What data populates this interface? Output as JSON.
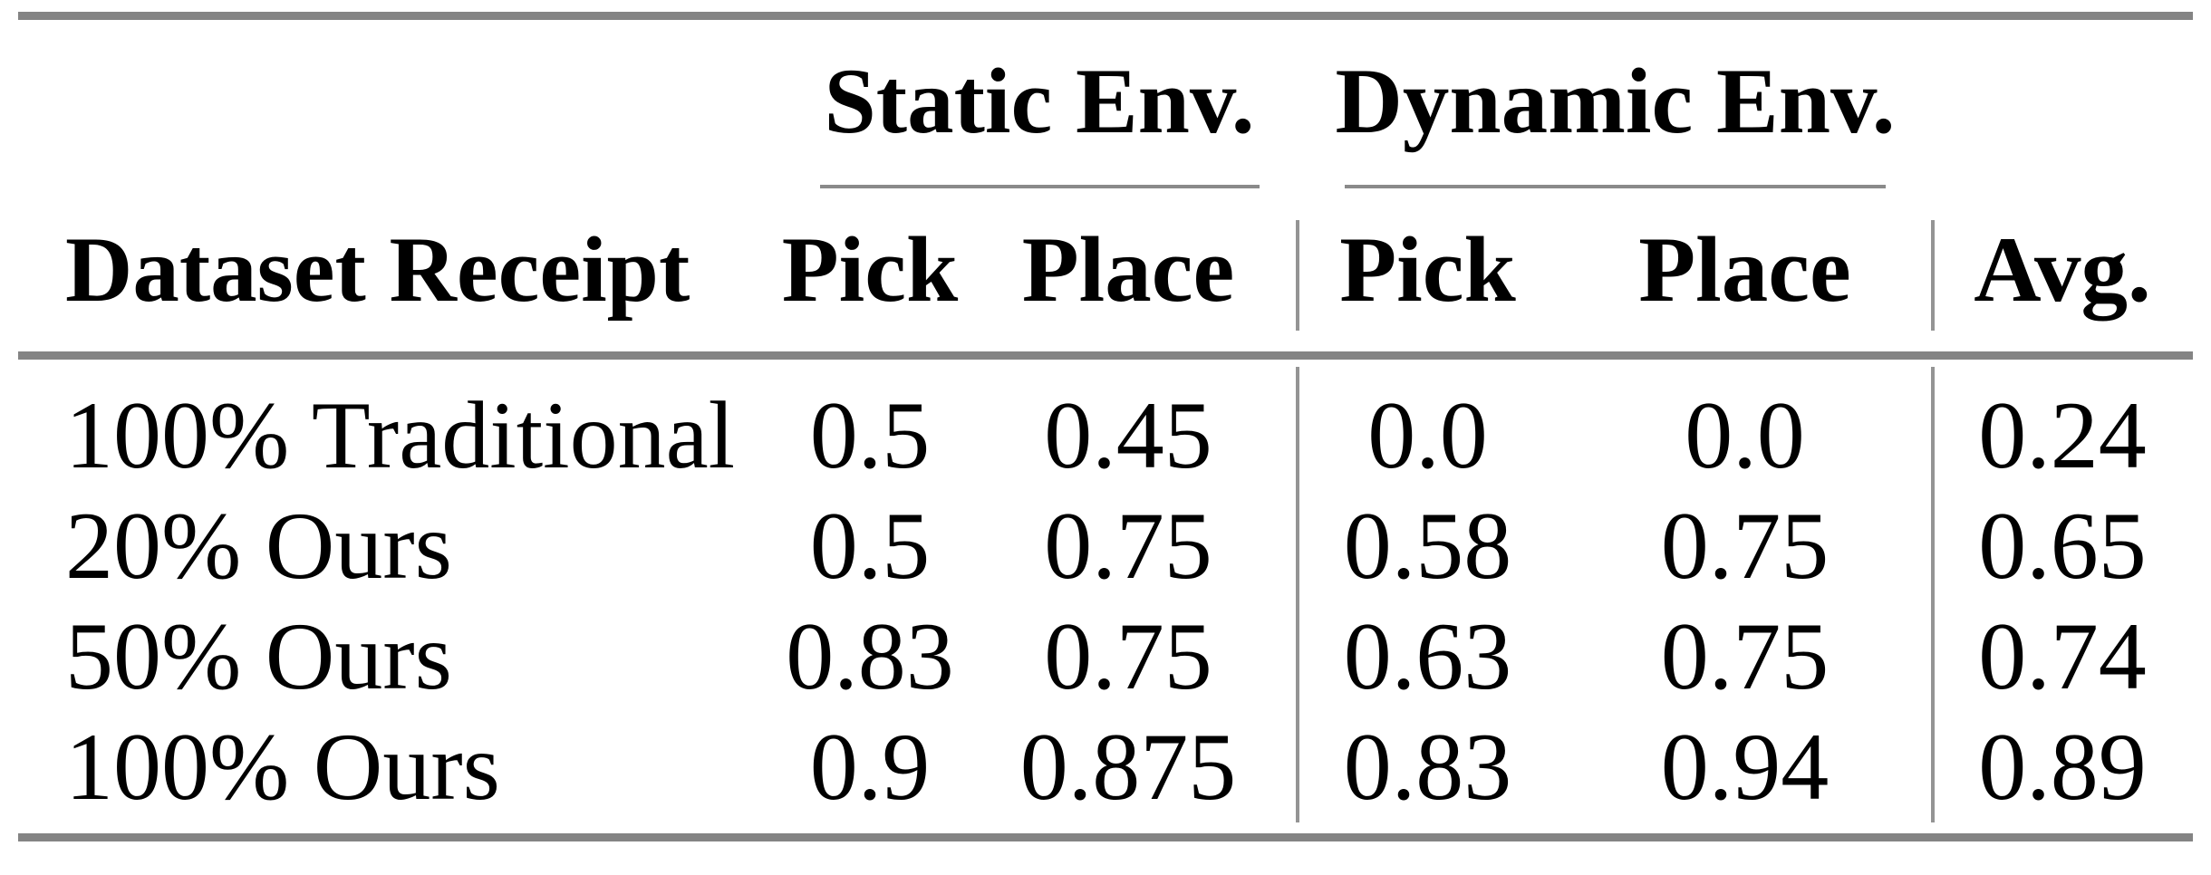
{
  "table": {
    "row_header": "Dataset Receipt",
    "groups": {
      "static": {
        "label": "Static Env.",
        "pick": "Pick",
        "place": "Place"
      },
      "dynamic": {
        "label": "Dynamic Env.",
        "pick": "Pick",
        "place": "Place"
      }
    },
    "avg_header": "Avg.",
    "rows": [
      {
        "label": "100% Traditional",
        "static_pick": "0.5",
        "static_place": "0.45",
        "dynamic_pick": "0.0",
        "dynamic_place": "0.0",
        "avg": "0.24"
      },
      {
        "label": "20% Ours",
        "static_pick": "0.5",
        "static_place": "0.75",
        "dynamic_pick": "0.58",
        "dynamic_place": "0.75",
        "avg": "0.65"
      },
      {
        "label": "50% Ours",
        "static_pick": "0.83",
        "static_place": "0.75",
        "dynamic_pick": "0.63",
        "dynamic_place": "0.75",
        "avg": "0.74"
      },
      {
        "label": "100% Ours",
        "static_pick": "0.9",
        "static_place": "0.875",
        "dynamic_pick": "0.83",
        "dynamic_place": "0.94",
        "avg": "0.89"
      }
    ],
    "colors": {
      "rule": "#848484",
      "separator": "#949494",
      "text": "#000000",
      "background": "#ffffff"
    }
  }
}
